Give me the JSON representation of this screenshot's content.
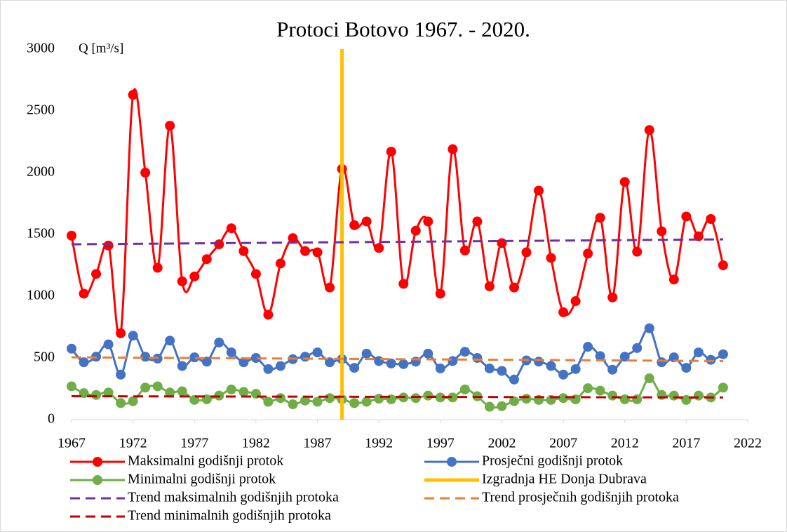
{
  "chart_data": {
    "type": "line",
    "title": "Protoci Botovo 1967. - 2020.",
    "y_label": "Q [m³/s]",
    "xlim": [
      1967,
      2022
    ],
    "xticks": [
      1967,
      1972,
      1977,
      1982,
      1987,
      1992,
      1997,
      2002,
      2007,
      2012,
      2017,
      2022
    ],
    "ylim": [
      0,
      3000
    ],
    "yticks": [
      0,
      500,
      1000,
      1500,
      2000,
      2500,
      3000
    ],
    "grid": false,
    "legend": "bottom",
    "x": [
      1967,
      1968,
      1969,
      1970,
      1971,
      1972,
      1973,
      1974,
      1975,
      1976,
      1977,
      1978,
      1979,
      1980,
      1981,
      1982,
      1983,
      1984,
      1985,
      1986,
      1987,
      1988,
      1989,
      1990,
      1991,
      1992,
      1993,
      1994,
      1995,
      1996,
      1997,
      1998,
      1999,
      2000,
      2001,
      2002,
      2003,
      2004,
      2005,
      2006,
      2007,
      2008,
      2009,
      2010,
      2011,
      2012,
      2013,
      2014,
      2015,
      2016,
      2017,
      2018,
      2019,
      2020
    ],
    "series": [
      {
        "name": "Maksimalni godišnji protok",
        "color": "#ff0000",
        "style": "markers",
        "values": [
          1490,
          1020,
          1180,
          1410,
          700,
          2630,
          2000,
          1230,
          2380,
          1120,
          1160,
          1300,
          1420,
          1550,
          1365,
          1180,
          850,
          1265,
          1470,
          1365,
          1355,
          1070,
          2030,
          1575,
          1605,
          1390,
          2170,
          1100,
          1530,
          1605,
          1020,
          2190,
          1370,
          1605,
          1080,
          1430,
          1070,
          1355,
          1855,
          1310,
          870,
          960,
          1345,
          1635,
          990,
          1925,
          1360,
          2345,
          1525,
          1135,
          1645,
          1485,
          1625,
          1250
        ]
      },
      {
        "name": "Prosječni godišnji protok",
        "color": "#4472c4",
        "style": "markers",
        "values": [
          575,
          465,
          510,
          610,
          365,
          680,
          510,
          495,
          640,
          435,
          505,
          470,
          625,
          545,
          465,
          500,
          410,
          435,
          490,
          510,
          545,
          465,
          490,
          420,
          535,
          475,
          455,
          450,
          470,
          535,
          415,
          475,
          550,
          500,
          415,
          395,
          325,
          480,
          470,
          435,
          365,
          410,
          590,
          515,
          405,
          510,
          580,
          740,
          465,
          505,
          420,
          545,
          485,
          530
        ]
      },
      {
        "name": "Minimalni godišnji protok",
        "color": "#70ad47",
        "style": "markers",
        "values": [
          270,
          215,
          200,
          220,
          135,
          150,
          260,
          270,
          220,
          230,
          160,
          165,
          195,
          245,
          225,
          210,
          145,
          175,
          125,
          155,
          145,
          175,
          165,
          135,
          145,
          170,
          165,
          180,
          175,
          195,
          180,
          180,
          245,
          190,
          105,
          110,
          150,
          170,
          160,
          160,
          175,
          165,
          255,
          235,
          195,
          165,
          165,
          335,
          200,
          195,
          160,
          195,
          180,
          260
        ]
      },
      {
        "name": "Izgradnja HE Donja Dubrava",
        "color": "#ffc000",
        "style": "vline",
        "x": [
          1989
        ]
      },
      {
        "name": "Trend maksimalnih godišnjih protoka",
        "color": "#7030a0",
        "style": "dashed",
        "x": [
          1967,
          2020
        ],
        "values": [
          1420,
          1460
        ]
      },
      {
        "name": "Trend prosječnih godišnjih protoka",
        "color": "#ed7d31",
        "style": "dashed",
        "x": [
          1967,
          2020
        ],
        "values": [
          505,
          475
        ]
      },
      {
        "name": "Trend minimalnih godišnjih protoka",
        "color": "#c00000",
        "style": "dashed",
        "x": [
          1967,
          2020
        ],
        "values": [
          190,
          180
        ]
      }
    ]
  }
}
